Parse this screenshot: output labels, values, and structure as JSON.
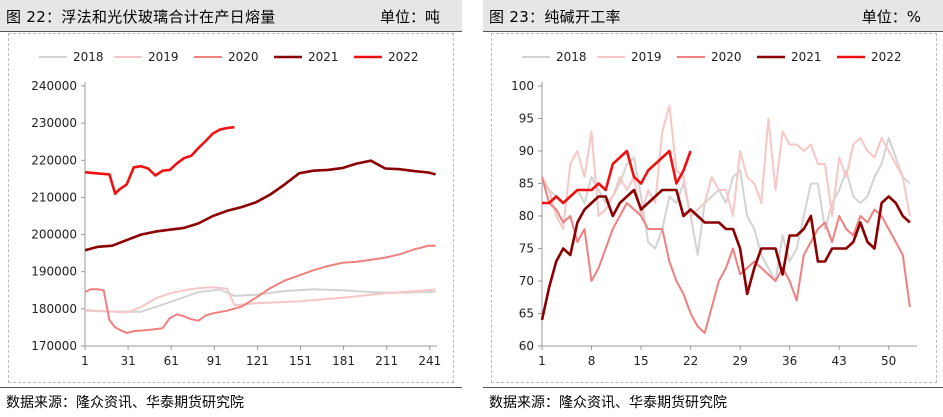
{
  "left": {
    "title": "图 22：浮法和光伏玻璃合计在产日熔量",
    "unit": "单位：吨",
    "source": "数据来源：隆众资讯、华泰期货研究院"
  },
  "right": {
    "title": "图 23：纯碱开工率",
    "unit": "单位：%",
    "source": "数据来源：隆众资讯、华泰期货研究院"
  },
  "chart_data": [
    {
      "type": "line",
      "title": "图 22：浮法和光伏玻璃合计在产日熔量",
      "unit": "单位：吨",
      "x_ticks": [
        1,
        31,
        61,
        91,
        121,
        151,
        181,
        211,
        241
      ],
      "y_ticks": [
        170000,
        180000,
        190000,
        200000,
        210000,
        220000,
        230000,
        240000
      ],
      "xlim": [
        1,
        246
      ],
      "ylim": [
        170000,
        240000
      ],
      "legend_position": "top",
      "series": [
        {
          "name": "2018",
          "color": "#d3d3d3",
          "x": [
            1,
            20,
            40,
            60,
            80,
            95,
            105,
            120,
            140,
            160,
            180,
            200,
            220,
            245
          ],
          "values": [
            179500,
            179300,
            179200,
            181800,
            184500,
            185200,
            183500,
            183800,
            184800,
            185300,
            185000,
            184500,
            184300,
            184600
          ]
        },
        {
          "name": "2019",
          "color": "#f7c6c6",
          "x": [
            1,
            10,
            20,
            30,
            40,
            50,
            60,
            70,
            80,
            90,
            100,
            105,
            120,
            150,
            180,
            210,
            240,
            245
          ],
          "values": [
            179800,
            179400,
            179300,
            179000,
            180500,
            182800,
            184200,
            185000,
            185600,
            185800,
            185400,
            181000,
            181500,
            182000,
            183000,
            184200,
            185000,
            185300
          ]
        },
        {
          "name": "2020",
          "color": "#f08080",
          "x": [
            1,
            5,
            10,
            14,
            18,
            22,
            26,
            30,
            35,
            45,
            55,
            60,
            65,
            70,
            75,
            80,
            85,
            90,
            100,
            110,
            120,
            130,
            140,
            150,
            160,
            170,
            180,
            190,
            200,
            210,
            220,
            230,
            235,
            240,
            245
          ],
          "values": [
            184500,
            185300,
            185300,
            185000,
            177000,
            175000,
            174200,
            173500,
            174000,
            174300,
            174800,
            177500,
            178500,
            178000,
            177200,
            176800,
            178200,
            178800,
            179500,
            180600,
            183000,
            185600,
            187600,
            189000,
            190400,
            191500,
            192400,
            192700,
            193200,
            193800,
            194700,
            196000,
            196500,
            197000,
            197000
          ]
        },
        {
          "name": "2021",
          "color": "#8b0000",
          "x": [
            1,
            5,
            10,
            20,
            30,
            40,
            50,
            60,
            70,
            80,
            90,
            100,
            110,
            120,
            130,
            140,
            150,
            160,
            170,
            180,
            190,
            200,
            210,
            220,
            230,
            240,
            245
          ],
          "values": [
            195800,
            196200,
            196700,
            197000,
            198500,
            200000,
            200800,
            201300,
            201800,
            203000,
            205000,
            206400,
            207400,
            208700,
            210800,
            213500,
            216500,
            217200,
            217400,
            217900,
            219100,
            219900,
            217800,
            217600,
            217100,
            216700,
            216200
          ]
        },
        {
          "name": "2022",
          "color": "#ee1111",
          "x": [
            1,
            6,
            12,
            18,
            22,
            25,
            30,
            35,
            40,
            45,
            50,
            55,
            60,
            65,
            70,
            75,
            80,
            85,
            90,
            95,
            100,
            105
          ],
          "values": [
            216800,
            216600,
            216400,
            216200,
            211000,
            212200,
            213500,
            218100,
            218400,
            217800,
            215900,
            217200,
            217400,
            219200,
            220600,
            221200,
            223300,
            225200,
            227200,
            228300,
            228700,
            228900
          ]
        }
      ]
    },
    {
      "type": "line",
      "title": "图 23：纯碱开工率",
      "unit": "单位：%",
      "x_ticks": [
        1,
        8,
        15,
        22,
        29,
        36,
        43,
        50
      ],
      "y_ticks": [
        60,
        65,
        70,
        75,
        80,
        85,
        90,
        95,
        100
      ],
      "xlim": [
        1,
        54
      ],
      "ylim": [
        60,
        100
      ],
      "legend_position": "top",
      "series": [
        {
          "name": "2018",
          "color": "#d3d3d3",
          "x": [
            1,
            2,
            3,
            4,
            5,
            6,
            7,
            8,
            9,
            10,
            11,
            12,
            13,
            14,
            15,
            16,
            17,
            18,
            19,
            20,
            21,
            22,
            23,
            24,
            25,
            26,
            27,
            28,
            29,
            30,
            31,
            32,
            33,
            34,
            35,
            36,
            37,
            38,
            39,
            40,
            41,
            42,
            43,
            44,
            45,
            46,
            47,
            48,
            49,
            50,
            51,
            52,
            53
          ],
          "values": [
            85,
            84,
            83,
            82,
            83,
            84,
            82,
            86,
            84,
            82,
            83,
            85,
            88,
            89,
            83,
            76,
            75,
            78,
            83,
            82,
            85,
            80,
            74,
            82,
            83,
            84,
            82,
            86,
            87,
            80,
            78,
            74,
            72,
            70,
            77,
            73,
            75,
            80,
            85,
            85,
            78,
            82,
            84,
            87,
            83,
            82,
            83,
            86,
            88,
            92,
            89,
            86,
            85
          ]
        },
        {
          "name": "2019",
          "color": "#f7c6c6",
          "x": [
            1,
            2,
            3,
            4,
            5,
            6,
            7,
            8,
            9,
            10,
            11,
            12,
            13,
            14,
            15,
            16,
            17,
            18,
            19,
            20,
            21,
            22,
            23,
            24,
            25,
            26,
            27,
            28,
            29,
            30,
            31,
            32,
            33,
            34,
            35,
            36,
            37,
            38,
            39,
            40,
            41,
            42,
            43,
            44,
            45,
            46,
            47,
            48,
            49,
            50,
            51,
            52,
            53
          ],
          "values": [
            86,
            84,
            80,
            78,
            88,
            90,
            86,
            93,
            80,
            81,
            83,
            86,
            84,
            86,
            80,
            84,
            82,
            93,
            97,
            87,
            86,
            80,
            81,
            82,
            86,
            84,
            84,
            80,
            90,
            86,
            85,
            82,
            95,
            84,
            93,
            91,
            91,
            90,
            91,
            88,
            88,
            80,
            89,
            86,
            91,
            92,
            90,
            89,
            92,
            90,
            88,
            86,
            80
          ]
        },
        {
          "name": "2020",
          "color": "#f08080",
          "x": [
            1,
            2,
            3,
            4,
            5,
            6,
            7,
            8,
            9,
            10,
            11,
            12,
            13,
            14,
            15,
            16,
            17,
            18,
            19,
            20,
            21,
            22,
            23,
            24,
            25,
            26,
            27,
            28,
            29,
            30,
            31,
            32,
            33,
            34,
            35,
            36,
            37,
            38,
            39,
            40,
            41,
            42,
            43,
            44,
            45,
            46,
            47,
            48,
            49,
            50,
            51,
            52,
            53
          ],
          "values": [
            86,
            82,
            81,
            79,
            80,
            76,
            78,
            70,
            72,
            75,
            78,
            80,
            82,
            81,
            80,
            78,
            78,
            78,
            73,
            70,
            68,
            65,
            63,
            62,
            66,
            70,
            72,
            75,
            71,
            72,
            73,
            72,
            71,
            70,
            72,
            70,
            67,
            74,
            76,
            78,
            79,
            76,
            80,
            78,
            77,
            80,
            79,
            81,
            80,
            78,
            76,
            74,
            66
          ]
        },
        {
          "name": "2021",
          "color": "#8b0000",
          "x": [
            1,
            2,
            3,
            4,
            5,
            6,
            7,
            8,
            9,
            10,
            11,
            12,
            13,
            14,
            15,
            16,
            17,
            18,
            19,
            20,
            21,
            22,
            23,
            24,
            25,
            26,
            27,
            28,
            29,
            30,
            31,
            32,
            33,
            34,
            35,
            36,
            37,
            38,
            39,
            40,
            41,
            42,
            43,
            44,
            45,
            46,
            47,
            48,
            49,
            50,
            51,
            52,
            53
          ],
          "values": [
            64,
            69,
            73,
            75,
            74,
            79,
            81,
            82,
            83,
            83,
            80,
            82,
            83,
            84,
            81,
            82,
            83,
            84,
            84,
            84,
            80,
            81,
            80,
            79,
            79,
            79,
            78,
            78,
            75,
            68,
            72,
            75,
            75,
            75,
            71,
            77,
            77,
            78,
            80,
            73,
            73,
            75,
            75,
            75,
            76,
            79,
            76,
            75,
            82,
            83,
            82,
            80,
            79
          ]
        },
        {
          "name": "2022",
          "color": "#ee1111",
          "x": [
            1,
            2,
            3,
            4,
            5,
            6,
            7,
            8,
            9,
            10,
            11,
            12,
            13,
            14,
            15,
            16,
            17,
            18,
            19,
            20,
            21,
            22
          ],
          "values": [
            82,
            82,
            83,
            82,
            83,
            84,
            84,
            84,
            85,
            84,
            88,
            89,
            90,
            86,
            85,
            87,
            88,
            89,
            90,
            85,
            87,
            90
          ]
        }
      ]
    }
  ]
}
